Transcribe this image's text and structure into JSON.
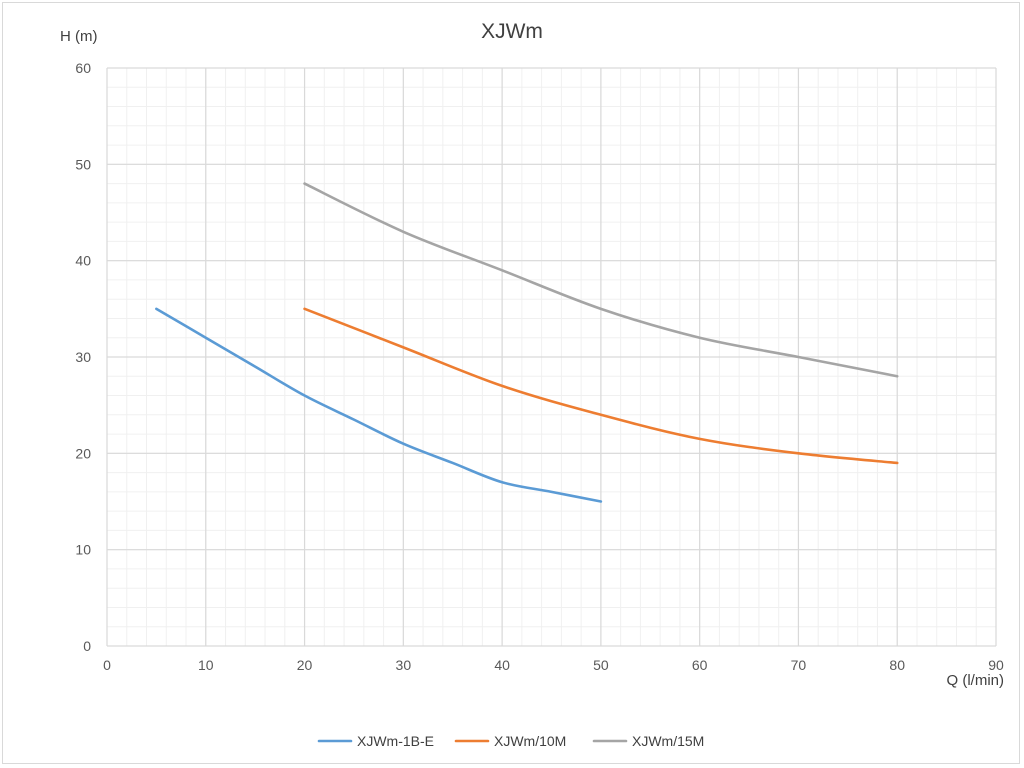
{
  "chart_data": {
    "type": "line",
    "title": "XJWm",
    "xlabel": "Q (l/min)",
    "ylabel": "H (m)",
    "xlim": [
      0,
      90
    ],
    "ylim": [
      0,
      60
    ],
    "x_major_ticks": [
      0,
      10,
      20,
      30,
      40,
      50,
      60,
      70,
      80,
      90
    ],
    "y_major_ticks": [
      0,
      10,
      20,
      30,
      40,
      50,
      60
    ],
    "grid": "major and minor",
    "legend_position": "bottom",
    "series": [
      {
        "name": "XJWm-1B-E",
        "color": "#5b9bd5",
        "points": [
          [
            5,
            35
          ],
          [
            10,
            32
          ],
          [
            15,
            29
          ],
          [
            20,
            26
          ],
          [
            25,
            23.5
          ],
          [
            30,
            21
          ],
          [
            35,
            19
          ],
          [
            40,
            17
          ],
          [
            45,
            16
          ],
          [
            50,
            15
          ]
        ]
      },
      {
        "name": "XJWm/10M",
        "color": "#ed7d31",
        "points": [
          [
            20,
            35
          ],
          [
            30,
            31
          ],
          [
            40,
            27
          ],
          [
            50,
            24
          ],
          [
            60,
            21.5
          ],
          [
            70,
            20
          ],
          [
            80,
            19
          ]
        ]
      },
      {
        "name": "XJWm/15M",
        "color": "#a5a5a5",
        "points": [
          [
            20,
            48
          ],
          [
            30,
            43
          ],
          [
            40,
            39
          ],
          [
            50,
            35
          ],
          [
            60,
            32
          ],
          [
            70,
            30
          ],
          [
            80,
            28
          ]
        ]
      }
    ]
  }
}
